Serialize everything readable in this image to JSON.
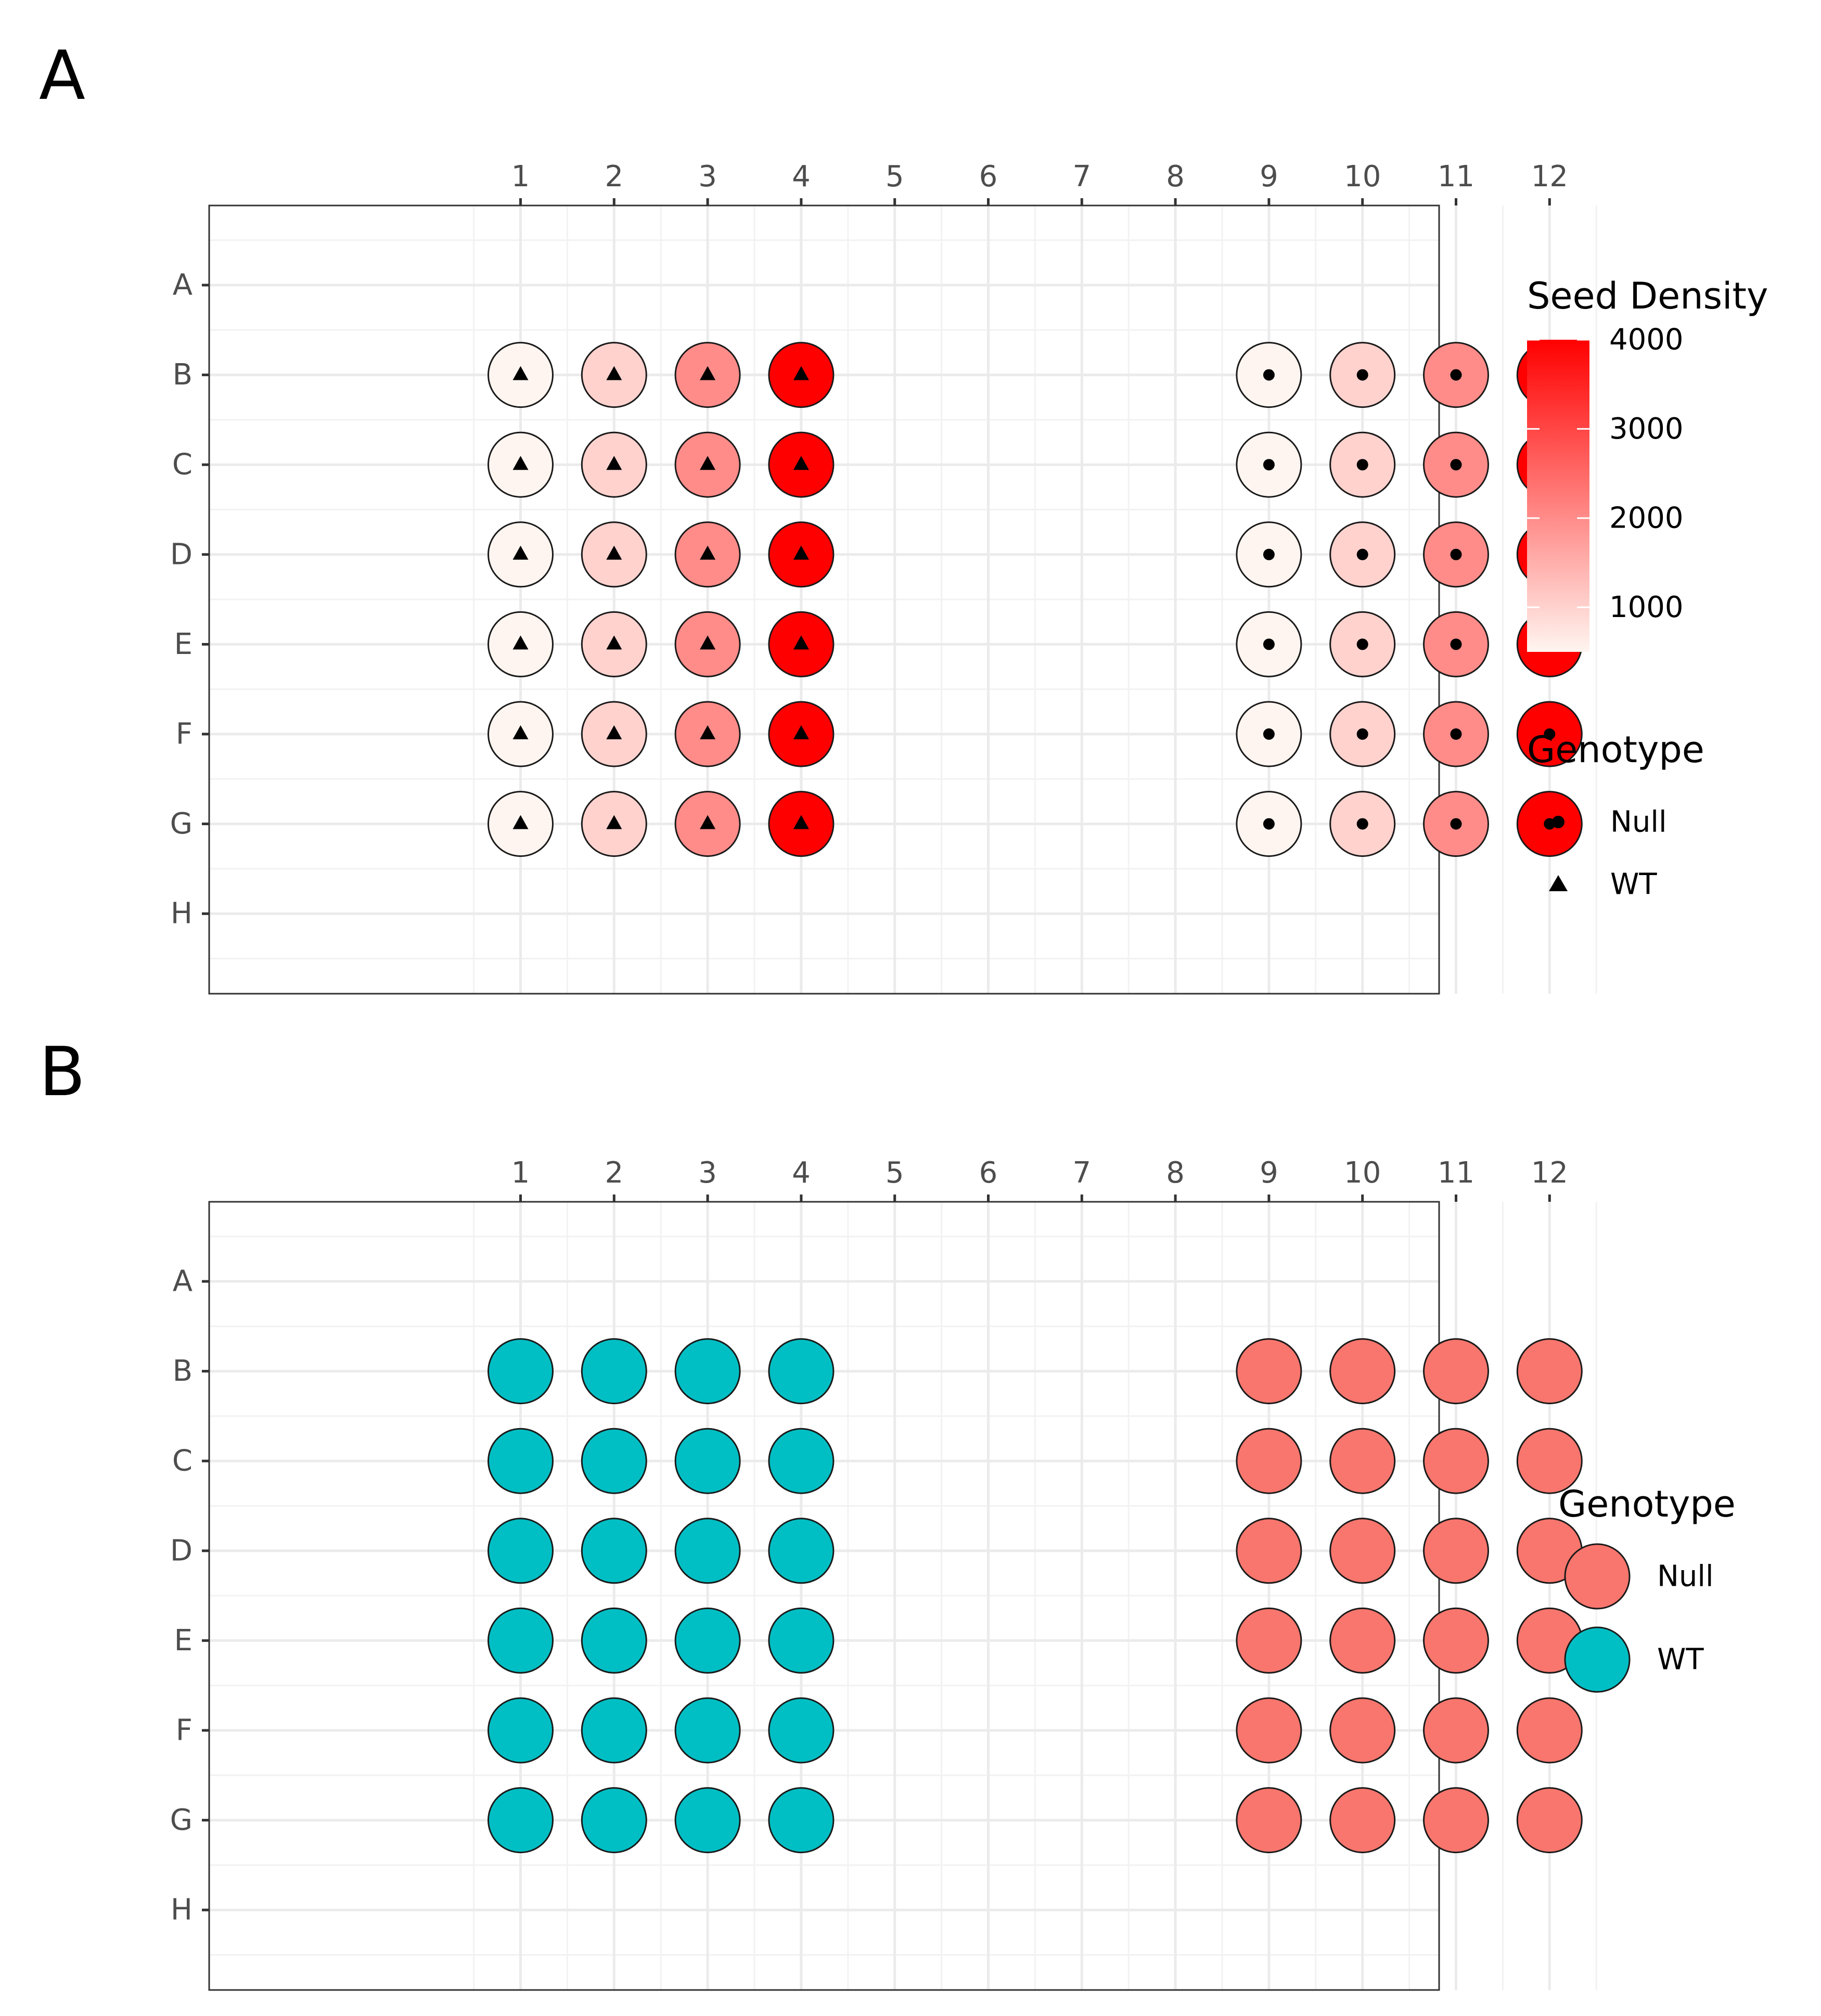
{
  "chart_data": [
    {
      "type": "scatter",
      "panel_label": "A",
      "title": "",
      "x_tick_labels": [
        "1",
        "2",
        "3",
        "4",
        "5",
        "6",
        "7",
        "8",
        "9",
        "10",
        "11",
        "12"
      ],
      "y_tick_labels": [
        "A",
        "B",
        "C",
        "D",
        "E",
        "F",
        "G",
        "H"
      ],
      "x_axis_position": "top",
      "y_axis_reversed": true,
      "grid": true,
      "fill_legend": {
        "title": "Seed Density",
        "ticks": [
          1000,
          2000,
          3000,
          4000
        ],
        "range": [
          500,
          4000
        ],
        "colors": [
          "#fff5f0",
          "#ff0000"
        ]
      },
      "shape_legend": {
        "title": "Genotype",
        "items": [
          {
            "label": "Null",
            "shape": "circle"
          },
          {
            "label": "WT",
            "shape": "triangle"
          }
        ]
      },
      "legend_position": "right",
      "series": [
        {
          "name": "WT",
          "shape": "triangle",
          "columns": [
            1,
            2,
            3,
            4
          ],
          "rows": [
            "B",
            "C",
            "D",
            "E",
            "F",
            "G"
          ],
          "seed_density_by_column": [
            500,
            1000,
            2000,
            4000
          ]
        },
        {
          "name": "Null",
          "shape": "circle",
          "columns": [
            9,
            10,
            11,
            12
          ],
          "rows": [
            "B",
            "C",
            "D",
            "E",
            "F",
            "G"
          ],
          "seed_density_by_column": [
            500,
            1000,
            2000,
            4000
          ]
        }
      ]
    },
    {
      "type": "scatter",
      "panel_label": "B",
      "title": "",
      "x_tick_labels": [
        "1",
        "2",
        "3",
        "4",
        "5",
        "6",
        "7",
        "8",
        "9",
        "10",
        "11",
        "12"
      ],
      "y_tick_labels": [
        "A",
        "B",
        "C",
        "D",
        "E",
        "F",
        "G",
        "H"
      ],
      "x_axis_position": "top",
      "y_axis_reversed": true,
      "grid": true,
      "fill_legend": {
        "title": "Genotype",
        "items": [
          {
            "label": "Null",
            "color": "#f8766d"
          },
          {
            "label": "WT",
            "color": "#00bfc4"
          }
        ]
      },
      "legend_position": "right",
      "series": [
        {
          "name": "WT",
          "color": "#00bfc4",
          "columns": [
            1,
            2,
            3,
            4
          ],
          "rows": [
            "B",
            "C",
            "D",
            "E",
            "F",
            "G"
          ]
        },
        {
          "name": "Null",
          "color": "#f8766d",
          "columns": [
            9,
            10,
            11,
            12
          ],
          "rows": [
            "B",
            "C",
            "D",
            "E",
            "F",
            "G"
          ]
        }
      ]
    }
  ]
}
